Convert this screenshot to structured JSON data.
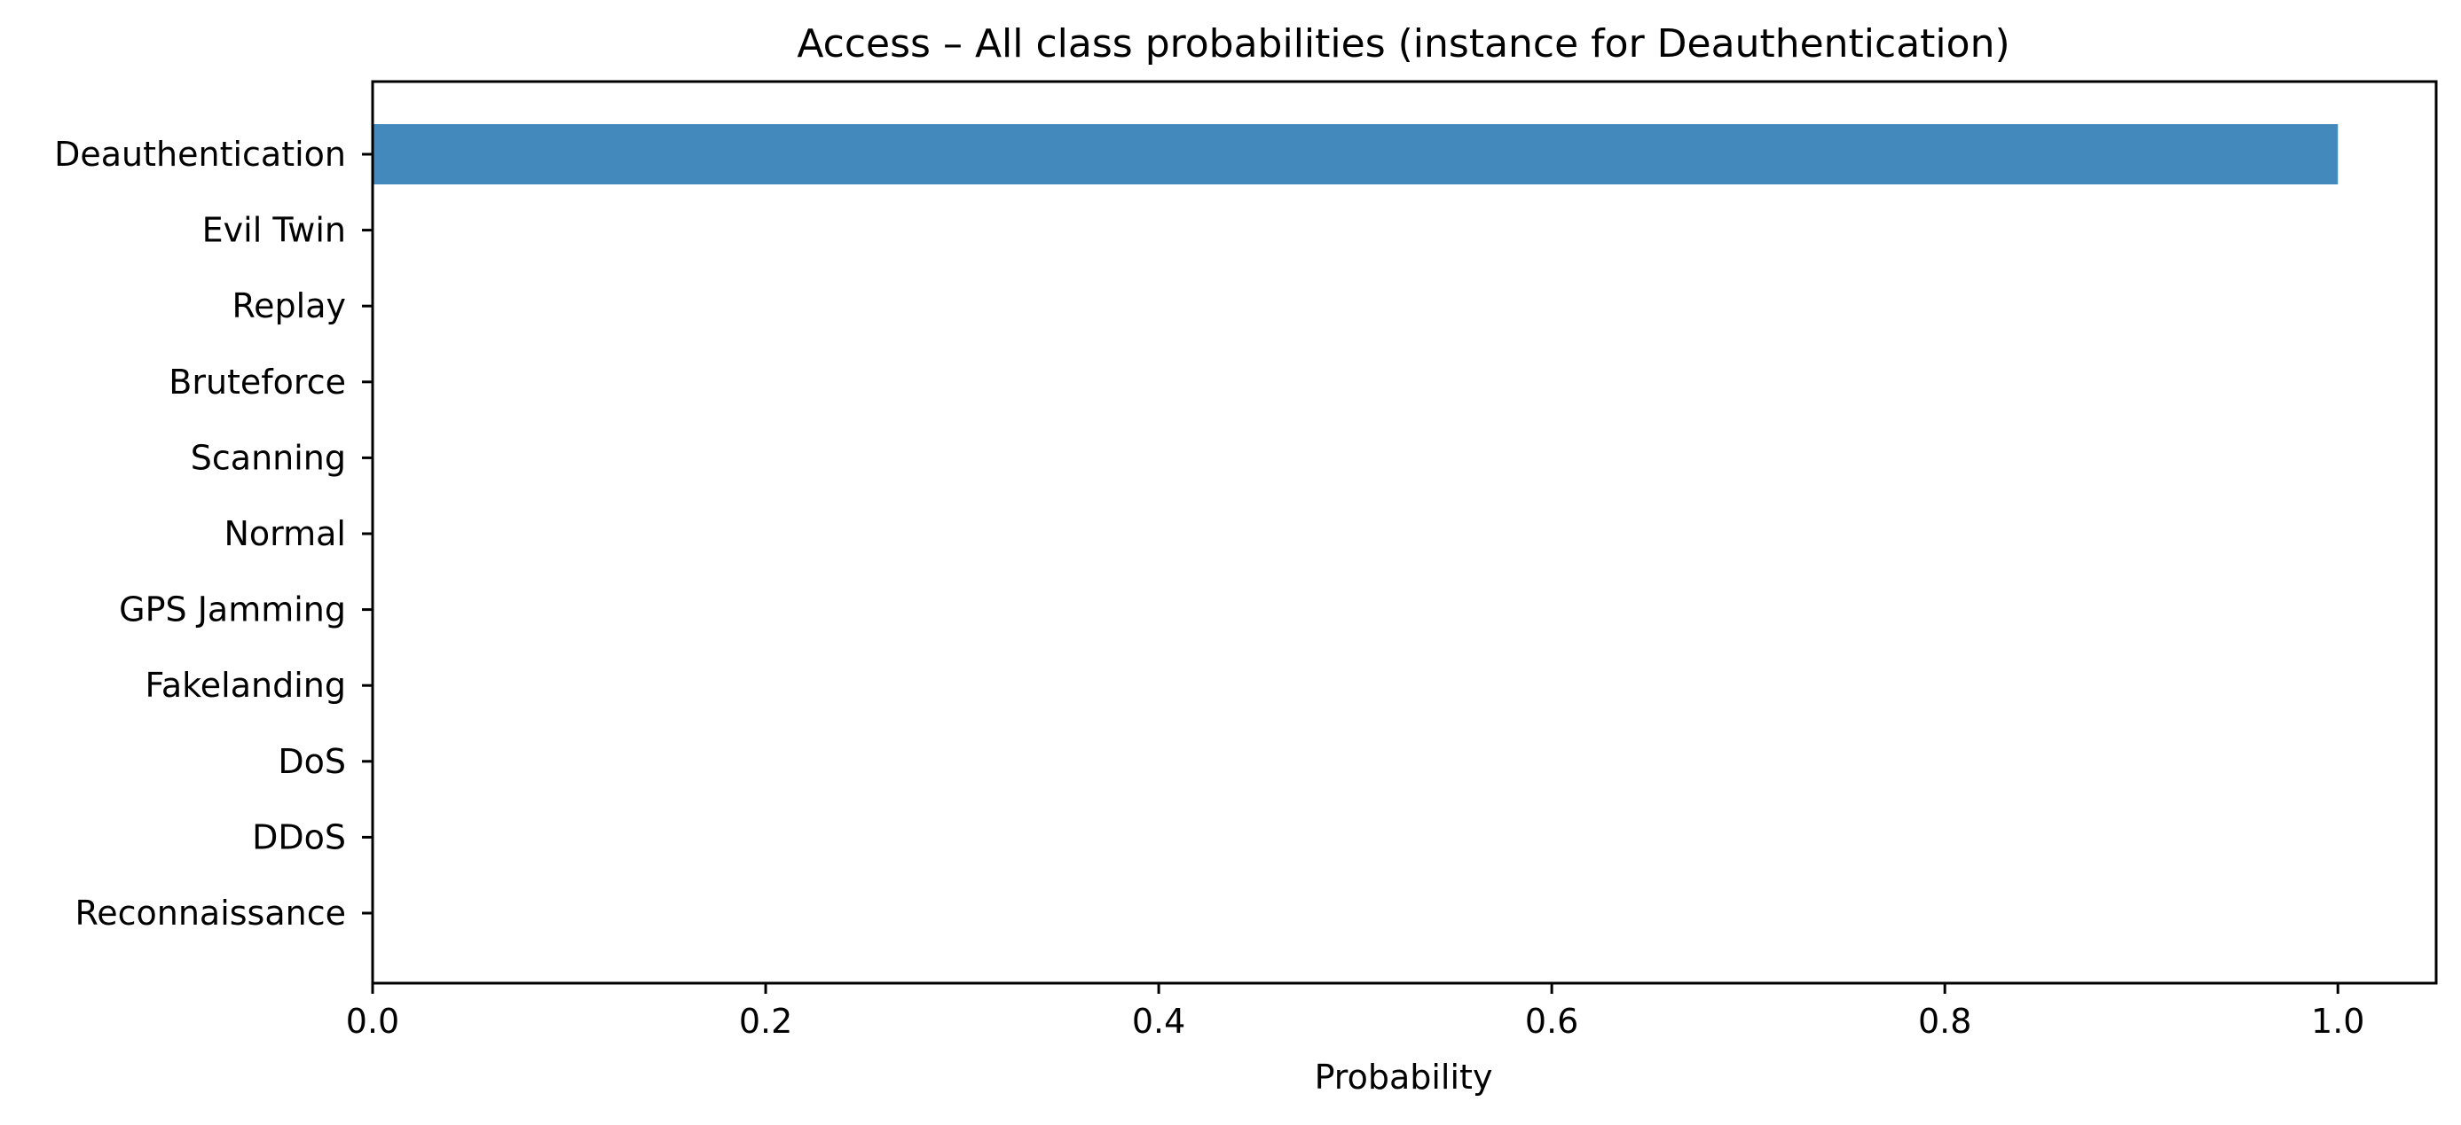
{
  "chart_data": {
    "type": "bar",
    "orientation": "horizontal",
    "title": "Access – All class probabilities (instance for Deauthentication)",
    "xlabel": "Probability",
    "ylabel": "",
    "categories": [
      "Deauthentication",
      "Evil Twin",
      "Replay",
      "Bruteforce",
      "Scanning",
      "Normal",
      "GPS Jamming",
      "Fakelanding",
      "DoS",
      "DDoS",
      "Reconnaissance"
    ],
    "values": [
      1.0,
      0,
      0,
      0,
      0,
      0,
      0,
      0,
      0,
      0,
      0
    ],
    "xlim": [
      0,
      1.05
    ],
    "xticks": [
      "0.0",
      "0.2",
      "0.4",
      "0.6",
      "0.8",
      "1.0"
    ],
    "grid": false,
    "legend": "none",
    "bar_color": "#4389bc"
  }
}
